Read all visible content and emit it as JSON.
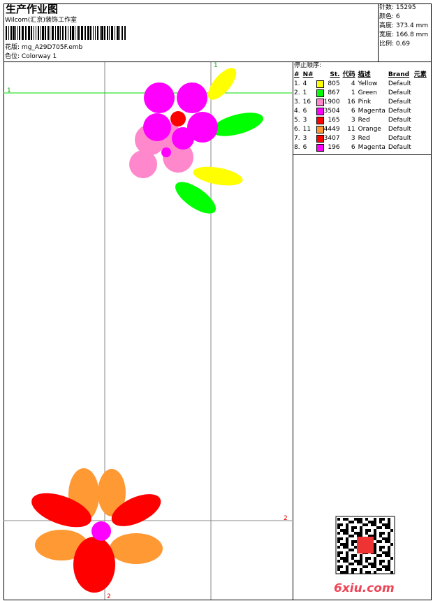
{
  "header": {
    "title": "生产作业图",
    "company": "Wilcom(汇京)装饰工作室",
    "design_label": "花版:",
    "design_value": "mg_A29D705F.emb",
    "colorway_label": "色位:",
    "colorway_value": "Colorway 1"
  },
  "stats": [
    {
      "label": "针数:",
      "value": "15295"
    },
    {
      "label": "颜色:",
      "value": "6"
    },
    {
      "label": "高度:",
      "value": "373.4 mm"
    },
    {
      "label": "宽度:",
      "value": "166.8 mm"
    },
    {
      "label": "比例:",
      "value": "0.69"
    }
  ],
  "stop_sequence": {
    "title": "停止顺序:",
    "headers": [
      "#",
      "N#",
      "St.",
      "代码",
      "描述",
      "Brand",
      "元素"
    ],
    "rows": [
      {
        "idx": "1.",
        "n": "4",
        "color": "#ffff00",
        "st": "805",
        "code": "4",
        "desc": "Yellow",
        "brand": "Default"
      },
      {
        "idx": "2.",
        "n": "1",
        "color": "#00ff00",
        "st": "867",
        "code": "1",
        "desc": "Green",
        "brand": "Default"
      },
      {
        "idx": "3.",
        "n": "16",
        "color": "#ff88cc",
        "st": "1900",
        "code": "16",
        "desc": "Pink",
        "brand": "Default"
      },
      {
        "idx": "4.",
        "n": "6",
        "color": "#ff00ff",
        "st": "3504",
        "code": "6",
        "desc": "Magenta",
        "brand": "Default"
      },
      {
        "idx": "5.",
        "n": "3",
        "color": "#ff0000",
        "st": "165",
        "code": "3",
        "desc": "Red",
        "brand": "Default"
      },
      {
        "idx": "6.",
        "n": "11",
        "color": "#ff9933",
        "st": "4449",
        "code": "11",
        "desc": "Orange",
        "brand": "Default"
      },
      {
        "idx": "7.",
        "n": "3",
        "color": "#ff0000",
        "st": "3407",
        "code": "3",
        "desc": "Red",
        "brand": "Default"
      },
      {
        "idx": "8.",
        "n": "6",
        "color": "#ff00ff",
        "st": "196",
        "code": "6",
        "desc": "Magenta",
        "brand": "Default"
      }
    ]
  },
  "guides": {
    "label_1": "1",
    "label_2": "2"
  },
  "watermark": "6xiu.com"
}
